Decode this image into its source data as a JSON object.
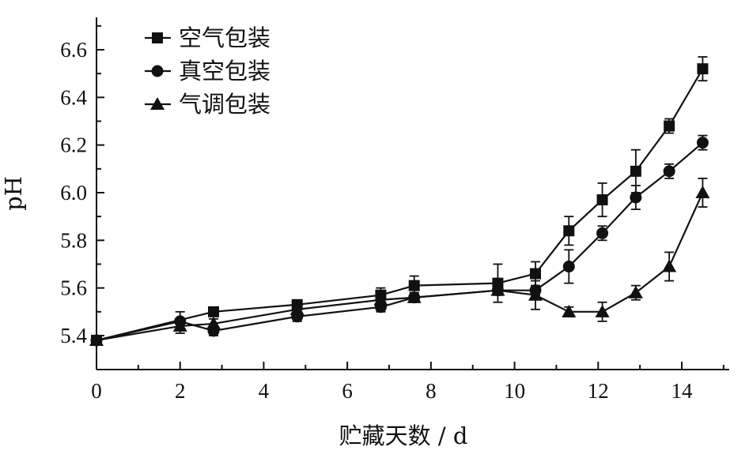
{
  "chart_data": {
    "type": "line",
    "xlabel": "贮藏天数 / d",
    "ylabel": "pH",
    "xlim": [
      0,
      15
    ],
    "ylim": [
      5.32,
      6.74
    ],
    "xticks": [
      0,
      2,
      4,
      6,
      8,
      10,
      12,
      14
    ],
    "yticks": [
      5.4,
      5.6,
      5.8,
      6.0,
      6.2,
      6.4,
      6.6
    ],
    "ytick_labels": [
      "5.4",
      "5.6",
      "5.8",
      "6.0",
      "6.2",
      "6.4",
      "6.6"
    ],
    "grid": false,
    "legend_position": "top-left",
    "series": [
      {
        "name": "空气包装",
        "marker": "square",
        "points": [
          {
            "x": 0,
            "y": 5.38,
            "err": 0.02
          },
          {
            "x": 2.8,
            "y": 5.5,
            "err": 0.01
          },
          {
            "x": 4.8,
            "y": 5.53,
            "err": 0.01
          },
          {
            "x": 6.8,
            "y": 5.57,
            "err": 0.03
          },
          {
            "x": 7.6,
            "y": 5.61,
            "err": 0.04
          },
          {
            "x": 9.6,
            "y": 5.62,
            "err": 0.08
          },
          {
            "x": 10.5,
            "y": 5.66,
            "err": 0.05
          },
          {
            "x": 11.3,
            "y": 5.84,
            "err": 0.06
          },
          {
            "x": 12.1,
            "y": 5.97,
            "err": 0.07
          },
          {
            "x": 12.9,
            "y": 6.09,
            "err": 0.09
          },
          {
            "x": 13.7,
            "y": 6.28,
            "err": 0.03
          },
          {
            "x": 14.5,
            "y": 6.52,
            "err": 0.05
          }
        ]
      },
      {
        "name": "真空包装",
        "marker": "circle",
        "points": [
          {
            "x": 0,
            "y": 5.38,
            "err": 0.02
          },
          {
            "x": 2.0,
            "y": 5.46,
            "err": 0.04
          },
          {
            "x": 2.8,
            "y": 5.42,
            "err": 0.02
          },
          {
            "x": 4.8,
            "y": 5.48,
            "err": 0.02
          },
          {
            "x": 6.8,
            "y": 5.52,
            "err": 0.02
          },
          {
            "x": 7.6,
            "y": 5.56,
            "err": 0.02
          },
          {
            "x": 9.6,
            "y": 5.59,
            "err": 0.02
          },
          {
            "x": 10.5,
            "y": 5.59,
            "err": 0.02
          },
          {
            "x": 11.3,
            "y": 5.69,
            "err": 0.07
          },
          {
            "x": 12.1,
            "y": 5.83,
            "err": 0.03
          },
          {
            "x": 12.9,
            "y": 5.98,
            "err": 0.05
          },
          {
            "x": 13.7,
            "y": 6.09,
            "err": 0.03
          },
          {
            "x": 14.5,
            "y": 6.21,
            "err": 0.03
          }
        ]
      },
      {
        "name": "气调包装",
        "marker": "triangle",
        "points": [
          {
            "x": 0,
            "y": 5.38,
            "err": 0.01
          },
          {
            "x": 2.0,
            "y": 5.44,
            "err": 0.03
          },
          {
            "x": 2.8,
            "y": 5.45,
            "err": 0.02
          },
          {
            "x": 4.8,
            "y": 5.51,
            "err": 0.02
          },
          {
            "x": 6.8,
            "y": 5.55,
            "err": 0.02
          },
          {
            "x": 7.6,
            "y": 5.56,
            "err": 0.02
          },
          {
            "x": 9.6,
            "y": 5.59,
            "err": 0.02
          },
          {
            "x": 10.5,
            "y": 5.57,
            "err": 0.06
          },
          {
            "x": 11.3,
            "y": 5.5,
            "err": 0.02
          },
          {
            "x": 12.1,
            "y": 5.5,
            "err": 0.04
          },
          {
            "x": 12.9,
            "y": 5.58,
            "err": 0.03
          },
          {
            "x": 13.7,
            "y": 5.69,
            "err": 0.06
          },
          {
            "x": 14.5,
            "y": 6.0,
            "err": 0.06
          }
        ]
      }
    ]
  }
}
